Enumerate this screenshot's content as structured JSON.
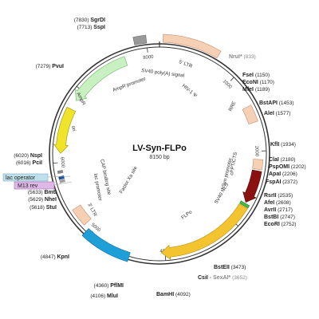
{
  "title": "LV-Syn-FLPo",
  "length_label": "8150 bp",
  "length": 8150,
  "ticks": [
    {
      "pos": 1000,
      "label": "1000"
    },
    {
      "pos": 2000,
      "label": "2000"
    },
    {
      "pos": 3000,
      "label": "3000"
    },
    {
      "pos": 4000,
      "label": "4000"
    },
    {
      "pos": 5000,
      "label": "5000"
    },
    {
      "pos": 6000,
      "label": "6000"
    },
    {
      "pos": 7000,
      "label": "7000"
    },
    {
      "pos": 8000,
      "label": "8000"
    }
  ],
  "features": [
    {
      "id": "5ltr",
      "label": "5' LTR",
      "start": 40,
      "end": 700,
      "color": "#f5d0b5",
      "stroke": "#c89070",
      "ring": "outer",
      "dir": "none"
    },
    {
      "id": "rre",
      "label": "RRE",
      "start": 1400,
      "end": 1620,
      "color": "#f5d0b5",
      "stroke": "#c89070",
      "ring": "inner",
      "dir": "none"
    },
    {
      "id": "cppt",
      "label": "cPPT/CTS",
      "start": 2110,
      "end": 2240,
      "color": "#f5d0b5",
      "stroke": "#c89070",
      "ring": "inner",
      "dir": "none"
    },
    {
      "id": "hsyn",
      "label": "hSyn promoter",
      "start": 2260,
      "end": 2700,
      "color": "#8b1010",
      "stroke": "#5a0808",
      "ring": "inner",
      "dir": "cw"
    },
    {
      "id": "sv40nls",
      "label": "SV40 NLS",
      "start": 2715,
      "end": 2750,
      "color": "#44bb44",
      "stroke": "#227722",
      "ring": "inner",
      "dir": "none"
    },
    {
      "id": "flpo",
      "label": "FLPo",
      "start": 2760,
      "end": 4050,
      "color": "#f4c430",
      "stroke": "#b08a10",
      "ring": "inner",
      "dir": "cw"
    },
    {
      "id": "wpre",
      "label": "WPRE",
      "start": 4450,
      "end": 5060,
      "color": "#1e9fd8",
      "stroke": "#1070a0",
      "ring": "main",
      "dir": "none"
    },
    {
      "id": "3ltr",
      "label": "3' LTR",
      "start": 5130,
      "end": 5370,
      "color": "#f5d0b5",
      "stroke": "#c89070",
      "ring": "inner",
      "dir": "none"
    },
    {
      "id": "ori",
      "label": "ori",
      "start": 6120,
      "end": 6720,
      "color": "#f0e42a",
      "stroke": "#a09010",
      "ring": "inner",
      "dir": "ccw"
    },
    {
      "id": "ampr",
      "label": "AmpR",
      "start": 6850,
      "end": 7700,
      "color": "#c8f0c0",
      "stroke": "#70b070",
      "ring": "inner",
      "dir": "ccw"
    },
    {
      "id": "sv40pa",
      "label": "SV40 poly(A) signal",
      "start": 7860,
      "end": 8000,
      "color": "#999999",
      "stroke": "#666666",
      "ring": "outer",
      "dir": "none"
    }
  ],
  "small_marks": [
    {
      "id": "lacop",
      "pos": 5805
    },
    {
      "id": "cap",
      "pos": 5880
    },
    {
      "id": "lacprom",
      "pos": 5760
    }
  ],
  "inner_labels": [
    {
      "id": "hiv-psi",
      "text": "HIV-1 Ψ"
    },
    {
      "id": "ampr-promoter",
      "text": "AmpR promoter"
    },
    {
      "id": "cap-binding",
      "text": "CAP binding site"
    },
    {
      "id": "lac-promoter",
      "text": "lac promoter"
    },
    {
      "id": "factor-xa",
      "text": "Factor Xa site"
    },
    {
      "id": "sv40-nls",
      "text": "SV40 NLS"
    }
  ],
  "callouts": [
    {
      "id": "lac-operator",
      "text": "lac operator",
      "bg": "#bfe0ea",
      "stroke": "#7ab0c0"
    },
    {
      "id": "m13-rev",
      "text": "M13 rev",
      "bg": "#e0b8e8",
      "stroke": "#a070b0"
    }
  ],
  "sites": [
    {
      "name": "SgrDI",
      "pos": "(7830)",
      "name_color": "#222",
      "pos_color": "#222"
    },
    {
      "name": "SspI",
      "pos": "(7713)",
      "name_color": "#222",
      "pos_color": "#222"
    },
    {
      "name": "PvuI",
      "pos": "(7279)",
      "name_color": "#222",
      "pos_color": "#222"
    },
    {
      "name": "NruI*",
      "pos": "(833)",
      "name_color": "#888",
      "pos_color": "#888"
    },
    {
      "name": "FseI",
      "pos": "(1150)",
      "name_color": "#222",
      "pos_color": "#222"
    },
    {
      "name": "EcoNI",
      "pos": "(1170)",
      "name_color": "#222",
      "pos_color": "#222"
    },
    {
      "name": "MfeI",
      "pos": "(1189)",
      "name_color": "#222",
      "pos_color": "#222"
    },
    {
      "name": "BstAPI",
      "pos": "(1453)",
      "name_color": "#222",
      "pos_color": "#222"
    },
    {
      "name": "AleI",
      "pos": "(1577)",
      "name_color": "#222",
      "pos_color": "#222"
    },
    {
      "name": "KflI",
      "pos": "(1934)",
      "name_color": "#222",
      "pos_color": "#222"
    },
    {
      "name": "ClaI",
      "pos": "(2180)",
      "name_color": "#222",
      "pos_color": "#222"
    },
    {
      "name": "PspOMI",
      "pos": "(2202)",
      "name_color": "#222",
      "pos_color": "#222"
    },
    {
      "name": "ApaI",
      "pos": "(2206)",
      "name_color": "#222",
      "pos_color": "#222"
    },
    {
      "name": "FspAI",
      "pos": "(2372)",
      "name_color": "#222",
      "pos_color": "#222"
    },
    {
      "name": "RsrII",
      "pos": "(2535)",
      "name_color": "#222",
      "pos_color": "#222"
    },
    {
      "name": "AfeI",
      "pos": "(2608)",
      "name_color": "#222",
      "pos_color": "#222"
    },
    {
      "name": "AvrII",
      "pos": "(2717)",
      "name_color": "#222",
      "pos_color": "#222"
    },
    {
      "name": "BstBI",
      "pos": "(2747)",
      "name_color": "#222",
      "pos_color": "#222"
    },
    {
      "name": "EcoRI",
      "pos": "(2752)",
      "name_color": "#222",
      "pos_color": "#222"
    },
    {
      "name": "BstEII",
      "pos": "(3473)",
      "name_color": "#222",
      "pos_color": "#222"
    },
    {
      "name": "CsiI",
      "pos": "(3652)",
      "name_color": "#222",
      "pos_color": "#888",
      "extra": " - SexAI*",
      "extra_color": "#888"
    },
    {
      "name": "BamHI",
      "pos": "(4092)",
      "name_color": "#222",
      "pos_color": "#222"
    },
    {
      "name": "MluI",
      "pos": "(4106)",
      "name_color": "#222",
      "pos_color": "#222"
    },
    {
      "name": "PflMI",
      "pos": "(4360)",
      "name_color": "#222",
      "pos_color": "#222"
    },
    {
      "name": "KpnI",
      "pos": "(4847)",
      "name_color": "#222",
      "pos_color": "#222"
    },
    {
      "name": "StuI",
      "pos": "(5618)",
      "name_color": "#222",
      "pos_color": "#222"
    },
    {
      "name": "NheI",
      "pos": "(5629)",
      "name_color": "#222",
      "pos_color": "#222"
    },
    {
      "name": "BmtI",
      "pos": "(5633)",
      "name_color": "#222",
      "pos_color": "#222"
    },
    {
      "name": "PciI",
      "pos": "(6016)",
      "name_color": "#222",
      "pos_color": "#222"
    },
    {
      "name": "NspI",
      "pos": "(6020)",
      "name_color": "#222",
      "pos_color": "#222"
    }
  ]
}
